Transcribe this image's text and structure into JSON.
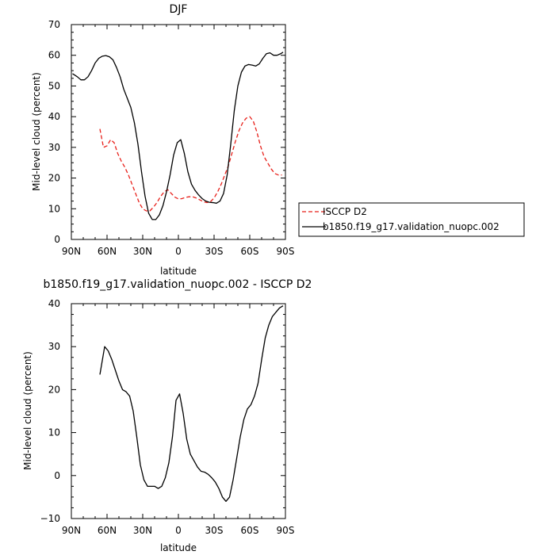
{
  "chart_data": [
    {
      "type": "line",
      "title": "DJF",
      "xlabel": "latitude",
      "ylabel": "Mid-level cloud (percent)",
      "xlim": [
        90,
        -90
      ],
      "ylim": [
        0,
        70
      ],
      "xticks": [
        90,
        60,
        30,
        0,
        -30,
        -60,
        -90
      ],
      "xtick_labels": [
        "90N",
        "60N",
        "30N",
        "0",
        "30S",
        "60S",
        "90S"
      ],
      "yticks": [
        0,
        10,
        20,
        30,
        40,
        50,
        60,
        70
      ],
      "ytick_labels": [
        "0",
        "10",
        "20",
        "30",
        "40",
        "50",
        "60",
        "70"
      ],
      "legend": {
        "placement": "right"
      },
      "series": [
        {
          "name": "ISCCP D2",
          "color": "#e8201a",
          "dash": true,
          "points": [
            [
              66,
              36
            ],
            [
              63,
              30
            ],
            [
              60,
              30.5
            ],
            [
              57,
              32.5
            ],
            [
              54,
              31.5
            ],
            [
              51,
              28
            ],
            [
              48,
              25.5
            ],
            [
              45,
              23.5
            ],
            [
              42,
              21
            ],
            [
              39,
              18
            ],
            [
              36,
              15
            ],
            [
              33,
              12
            ],
            [
              30,
              10
            ],
            [
              27,
              9.3
            ],
            [
              24,
              9.3
            ],
            [
              21,
              10.5
            ],
            [
              18,
              12
            ],
            [
              15,
              14
            ],
            [
              12,
              15.5
            ],
            [
              9,
              16.2
            ],
            [
              6,
              15
            ],
            [
              3,
              13.8
            ],
            [
              0,
              13.2
            ],
            [
              -3,
              13.3
            ],
            [
              -6,
              13.7
            ],
            [
              -9,
              13.9
            ],
            [
              -12,
              13.9
            ],
            [
              -15,
              13.5
            ],
            [
              -18,
              12.9
            ],
            [
              -21,
              12.3
            ],
            [
              -24,
              12
            ],
            [
              -27,
              12.3
            ],
            [
              -30,
              13.5
            ],
            [
              -33,
              15.5
            ],
            [
              -36,
              18
            ],
            [
              -39,
              21
            ],
            [
              -42,
              24
            ],
            [
              -45,
              28
            ],
            [
              -48,
              32
            ],
            [
              -51,
              35.5
            ],
            [
              -54,
              38
            ],
            [
              -57,
              39.5
            ],
            [
              -60,
              40
            ],
            [
              -63,
              38.5
            ],
            [
              -66,
              35
            ],
            [
              -69,
              30.5
            ],
            [
              -72,
              27
            ],
            [
              -75,
              25
            ],
            [
              -78,
              23
            ],
            [
              -81,
              21.5
            ],
            [
              -84,
              21
            ],
            [
              -87,
              21
            ]
          ]
        },
        {
          "name": "b1850.f19_g17.validation_nuopc.002",
          "color": "#000000",
          "dash": false,
          "points": [
            [
              89,
              54
            ],
            [
              85,
              53
            ],
            [
              82,
              52
            ],
            [
              79,
              52
            ],
            [
              76,
              53
            ],
            [
              73,
              55
            ],
            [
              70,
              57.5
            ],
            [
              67,
              59
            ],
            [
              64,
              59.7
            ],
            [
              61,
              59.9
            ],
            [
              58,
              59.5
            ],
            [
              55,
              58.5
            ],
            [
              52,
              56
            ],
            [
              49,
              53
            ],
            [
              46,
              49
            ],
            [
              43,
              46
            ],
            [
              40,
              43
            ],
            [
              37,
              38
            ],
            [
              34,
              31
            ],
            [
              31,
              22
            ],
            [
              28,
              14
            ],
            [
              25,
              8.5
            ],
            [
              22,
              6.5
            ],
            [
              19,
              6.5
            ],
            [
              16,
              8
            ],
            [
              13,
              11
            ],
            [
              10,
              15.5
            ],
            [
              7,
              21
            ],
            [
              4,
              27.5
            ],
            [
              1,
              31.5
            ],
            [
              -2,
              32.5
            ],
            [
              -5,
              28
            ],
            [
              -8,
              22
            ],
            [
              -11,
              18
            ],
            [
              -14,
              16
            ],
            [
              -17,
              14.5
            ],
            [
              -20,
              13.3
            ],
            [
              -23,
              12.5
            ],
            [
              -26,
              12.1
            ],
            [
              -29,
              12
            ],
            [
              -32,
              11.8
            ],
            [
              -35,
              12.5
            ],
            [
              -38,
              15
            ],
            [
              -41,
              21
            ],
            [
              -44,
              31
            ],
            [
              -47,
              42
            ],
            [
              -50,
              50
            ],
            [
              -53,
              54.5
            ],
            [
              -56,
              56.5
            ],
            [
              -59,
              57
            ],
            [
              -62,
              56.8
            ],
            [
              -65,
              56.5
            ],
            [
              -68,
              57.2
            ],
            [
              -71,
              59
            ],
            [
              -74,
              60.5
            ],
            [
              -77,
              60.8
            ],
            [
              -80,
              60
            ],
            [
              -83,
              60
            ],
            [
              -86,
              60.5
            ],
            [
              -88,
              61
            ]
          ]
        }
      ]
    },
    {
      "type": "line",
      "title": "b1850.f19_g17.validation_nuopc.002 - ISCCP D2",
      "xlabel": "latitude",
      "ylabel": "Mid-level cloud (percent)",
      "xlim": [
        90,
        -90
      ],
      "ylim": [
        -10,
        40
      ],
      "xticks": [
        90,
        60,
        30,
        0,
        -30,
        -60,
        -90
      ],
      "xtick_labels": [
        "90N",
        "60N",
        "30N",
        "0",
        "30S",
        "60S",
        "90S"
      ],
      "yticks": [
        -10,
        0,
        10,
        20,
        30,
        40
      ],
      "ytick_labels": [
        "−10",
        "0",
        "10",
        "20",
        "30",
        "40"
      ],
      "series": [
        {
          "color": "#000000",
          "dash": false,
          "points": [
            [
              66,
              23.5
            ],
            [
              62,
              30
            ],
            [
              59,
              29
            ],
            [
              56,
              27
            ],
            [
              53,
              24.5
            ],
            [
              50,
              22
            ],
            [
              47,
              20
            ],
            [
              44,
              19.5
            ],
            [
              41,
              18.5
            ],
            [
              38,
              15
            ],
            [
              35,
              9
            ],
            [
              32,
              2.5
            ],
            [
              29,
              -1
            ],
            [
              26,
              -2.5
            ],
            [
              23,
              -2.5
            ],
            [
              20,
              -2.5
            ],
            [
              17,
              -3
            ],
            [
              14,
              -2.5
            ],
            [
              11,
              -0.5
            ],
            [
              8,
              3
            ],
            [
              5,
              9
            ],
            [
              2,
              17.5
            ],
            [
              -1,
              19
            ],
            [
              -4,
              14.5
            ],
            [
              -7,
              8.5
            ],
            [
              -10,
              5
            ],
            [
              -13,
              3.5
            ],
            [
              -16,
              2
            ],
            [
              -19,
              1
            ],
            [
              -22,
              0.8
            ],
            [
              -25,
              0.3
            ],
            [
              -28,
              -0.5
            ],
            [
              -31,
              -1.5
            ],
            [
              -34,
              -3
            ],
            [
              -37,
              -5
            ],
            [
              -40,
              -6
            ],
            [
              -43,
              -5
            ],
            [
              -46,
              -1
            ],
            [
              -49,
              4
            ],
            [
              -52,
              9
            ],
            [
              -55,
              13
            ],
            [
              -58,
              15.5
            ],
            [
              -61,
              16.5
            ],
            [
              -64,
              18.5
            ],
            [
              -67,
              21.5
            ],
            [
              -70,
              27
            ],
            [
              -73,
              32
            ],
            [
              -76,
              35
            ],
            [
              -79,
              37
            ],
            [
              -82,
              38
            ],
            [
              -85,
              39
            ],
            [
              -88,
              39.5
            ]
          ]
        }
      ]
    }
  ]
}
